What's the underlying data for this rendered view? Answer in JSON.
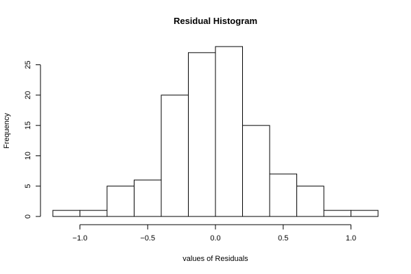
{
  "chart_data": {
    "type": "bar",
    "title": "Residual Histogram",
    "xlabel": "values of Residuals",
    "ylabel": "Frequency",
    "bins": [
      {
        "x0": -1.2,
        "x1": -1.0,
        "count": 1
      },
      {
        "x0": -1.0,
        "x1": -0.8,
        "count": 1
      },
      {
        "x0": -0.8,
        "x1": -0.6,
        "count": 5
      },
      {
        "x0": -0.6,
        "x1": -0.4,
        "count": 6
      },
      {
        "x0": -0.4,
        "x1": -0.2,
        "count": 20
      },
      {
        "x0": -0.2,
        "x1": 0.0,
        "count": 27
      },
      {
        "x0": 0.0,
        "x1": 0.2,
        "count": 28
      },
      {
        "x0": 0.2,
        "x1": 0.4,
        "count": 15
      },
      {
        "x0": 0.4,
        "x1": 0.6,
        "count": 7
      },
      {
        "x0": 0.6,
        "x1": 0.8,
        "count": 5
      },
      {
        "x0": 0.8,
        "x1": 1.0,
        "count": 1
      },
      {
        "x0": 1.0,
        "x1": 1.2,
        "count": 1
      }
    ],
    "xlim": [
      -1.2,
      1.2
    ],
    "ylim": [
      0,
      28
    ],
    "x_ticks": [
      -1.0,
      -0.5,
      0.0,
      0.5,
      1.0
    ],
    "x_tick_labels": [
      "−1.0",
      "−0.5",
      "0.0",
      "0.5",
      "1.0"
    ],
    "y_ticks": [
      0,
      5,
      10,
      15,
      20,
      25
    ],
    "y_tick_labels": [
      "0",
      "5",
      "10",
      "15",
      "20",
      "25"
    ],
    "grid": false,
    "legend": "none"
  }
}
